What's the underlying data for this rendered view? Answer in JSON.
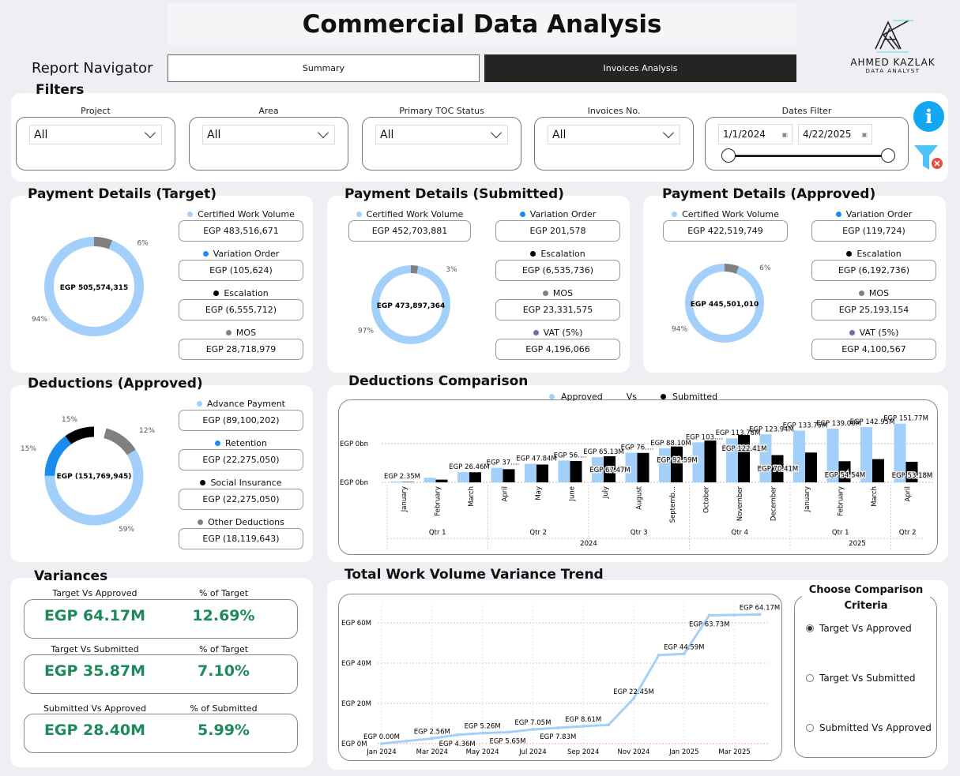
{
  "header": {
    "title": "Commercial Data Analysis",
    "nav_label": "Report Navigator",
    "nav_buttons": [
      "Summary",
      "Invoices Analysis"
    ],
    "logo_name": "AHMED KAZLAK",
    "logo_sub": "DATA ANALYST"
  },
  "filters": {
    "title": "Filters",
    "items": [
      {
        "label": "Project",
        "value": "All"
      },
      {
        "label": "Area",
        "value": "All"
      },
      {
        "label": "Primary TOC Status",
        "value": "All"
      },
      {
        "label": "Invoices No.",
        "value": "All"
      }
    ],
    "dates": {
      "label": "Dates Filter",
      "start": "1/1/2024",
      "end": "4/22/2025"
    },
    "icons": [
      "info-icon",
      "clear-filter-icon"
    ]
  },
  "colors": {
    "light_blue": "#a3d0fb",
    "blue": "#1a8cf0",
    "black": "#000000",
    "gray": "#808080",
    "green": "#1e8a5a",
    "accent": "#12a7f0"
  },
  "payment_target": {
    "title": "Payment Details (Target)",
    "total": "EGP 505,574,315",
    "pct_main": "94%",
    "pct_other": "6%",
    "share_main": 94,
    "cards": [
      {
        "label": "Certified Work Volume",
        "value": "EGP 483,516,671",
        "color": "#a3d0fb"
      },
      {
        "label": "Variation Order",
        "value": "EGP (105,624)",
        "color": "#1a8cf0"
      },
      {
        "label": "Escalation",
        "value": "EGP (6,555,712)",
        "color": "#000000"
      },
      {
        "label": "MOS",
        "value": "EGP 28,718,979",
        "color": "#808080"
      }
    ]
  },
  "payment_submitted": {
    "title": "Payment Details (Submitted)",
    "total": "EGP 473,897,364",
    "pct_main": "97%",
    "pct_other": "3%",
    "share_main": 97,
    "cards": [
      {
        "label": "Certified Work Volume",
        "value": "EGP 452,703,881",
        "color": "#a3d0fb"
      },
      {
        "label": "Variation Order",
        "value": "EGP 201,578",
        "color": "#1a8cf0"
      },
      {
        "label": "Escalation",
        "value": "EGP (6,535,736)",
        "color": "#000000"
      },
      {
        "label": "MOS",
        "value": "EGP 23,331,575",
        "color": "#808080"
      },
      {
        "label": "VAT (5%)",
        "value": "EGP 4,196,066",
        "color": "#6b6fa8"
      }
    ]
  },
  "payment_approved": {
    "title": "Payment Details (Approved)",
    "total": "EGP 445,501,010",
    "pct_main": "94%",
    "pct_other": "6%",
    "share_main": 94,
    "cards": [
      {
        "label": "Certified Work Volume",
        "value": "EGP 422,519,749",
        "color": "#a3d0fb"
      },
      {
        "label": "Variation Order",
        "value": "EGP (119,724)",
        "color": "#1a8cf0"
      },
      {
        "label": "Escalation",
        "value": "EGP (6,192,736)",
        "color": "#000000"
      },
      {
        "label": "MOS",
        "value": "EGP 25,193,154",
        "color": "#808080"
      },
      {
        "label": "VAT (5%)",
        "value": "EGP 4,100,567",
        "color": "#6b6fa8"
      }
    ]
  },
  "deductions": {
    "title": "Deductions (Approved)",
    "total": "EGP (151,769,945)",
    "pcts": [
      "59%",
      "15%",
      "15%",
      "12%"
    ],
    "cards": [
      {
        "label": "Advance Payment",
        "value": "EGP (89,100,202)",
        "color": "#a3d0fb"
      },
      {
        "label": "Retention",
        "value": "EGP (22,275,050)",
        "color": "#1a8cf0"
      },
      {
        "label": "Social Insurance",
        "value": "EGP (22,275,050)",
        "color": "#000000"
      },
      {
        "label": "Other Deductions",
        "value": "EGP (18,119,643)",
        "color": "#808080"
      }
    ]
  },
  "variances": {
    "title": "Variances",
    "rows": [
      {
        "label": "Target Vs Approved",
        "value": "EGP 64.17M",
        "pct_label": "% of Target",
        "pct": "12.69%"
      },
      {
        "label": "Target Vs Submitted",
        "value": "EGP 35.87M",
        "pct_label": "% of Target",
        "pct": "7.10%"
      },
      {
        "label": "Submitted Vs Approved",
        "value": "EGP 28.40M",
        "pct_label": "% of Submitted",
        "pct": "5.99%"
      }
    ]
  },
  "criteria": {
    "title": "Choose Comparison Criteria",
    "options": [
      "Target Vs Approved",
      "Target Vs Submitted",
      "Submitted Vs Approved"
    ],
    "selected": 0
  },
  "chart_data": [
    {
      "type": "bar",
      "title": "Deductions Comparison",
      "legend": [
        "Approved",
        "Vs",
        "Submitted"
      ],
      "legend_placement": "top",
      "categories": [
        "January",
        "February",
        "March",
        "April",
        "May",
        "June",
        "July",
        "August",
        "Septemb...",
        "October",
        "November",
        "December",
        "January",
        "February",
        "March",
        "April"
      ],
      "quarters": [
        {
          "label": "Qtr 1",
          "n": 3
        },
        {
          "label": "Qtr 2",
          "n": 3
        },
        {
          "label": "Qtr 3",
          "n": 3
        },
        {
          "label": "Qtr 4",
          "n": 3
        },
        {
          "label": "Qtr 1",
          "n": 3
        },
        {
          "label": "Qtr 2",
          "n": 1
        }
      ],
      "years": [
        {
          "label": "2024",
          "n": 12
        },
        {
          "label": "2025",
          "n": 4
        }
      ],
      "y_ticks": [
        "EGP 0bn",
        "EGP 0bn"
      ],
      "ylim_millions": [
        0,
        160
      ],
      "series": [
        {
          "name": "Approved",
          "color": "#a3d0fb",
          "values": [
            2.35,
            12,
            26.46,
            37.5,
            47.84,
            56.5,
            65.13,
            76.5,
            88.1,
            103.5,
            113.78,
            123.94,
            133.75,
            139.06,
            142.95,
            151.77
          ]
        },
        {
          "name": "Submitted",
          "color": "#000000",
          "values": [
            1,
            7,
            26,
            34,
            46,
            55,
            67.47,
            76,
            92.59,
            108,
            122.41,
            70.41,
            77,
            54.54,
            60,
            53.18
          ]
        }
      ],
      "data_labels": [
        {
          "i": 0,
          "s": 0,
          "text": "EGP 2.35M"
        },
        {
          "i": 2,
          "s": 0,
          "text": "EGP 26.46M"
        },
        {
          "i": 3,
          "s": 0,
          "text": "EGP 37.…"
        },
        {
          "i": 4,
          "s": 0,
          "text": "EGP 47.84M"
        },
        {
          "i": 5,
          "s": 0,
          "text": "EGP 56.…"
        },
        {
          "i": 6,
          "s": 0,
          "text": "EGP 65.13M"
        },
        {
          "i": 6,
          "s": 1,
          "text": "EGP 67.47M"
        },
        {
          "i": 7,
          "s": 0,
          "text": "EGP 76.…"
        },
        {
          "i": 8,
          "s": 0,
          "text": "EGP 88.10M"
        },
        {
          "i": 8,
          "s": 1,
          "text": "EGP 92.59M"
        },
        {
          "i": 9,
          "s": 0,
          "text": "EGP 103.…"
        },
        {
          "i": 10,
          "s": 0,
          "text": "EGP 113.78M"
        },
        {
          "i": 10,
          "s": 1,
          "text": "EGP 122.41M"
        },
        {
          "i": 11,
          "s": 0,
          "text": "EGP 123.94M"
        },
        {
          "i": 11,
          "s": 1,
          "text": "EGP 70.41M"
        },
        {
          "i": 12,
          "s": 0,
          "text": "EGP 133.75M"
        },
        {
          "i": 13,
          "s": 0,
          "text": "EGP 139.06M"
        },
        {
          "i": 13,
          "s": 1,
          "text": "EGP 54.54M"
        },
        {
          "i": 14,
          "s": 0,
          "text": "EGP 142.95M"
        },
        {
          "i": 15,
          "s": 0,
          "text": "EGP 151.77M"
        },
        {
          "i": 15,
          "s": 1,
          "text": "EGP 53.18M"
        }
      ]
    },
    {
      "type": "line",
      "title": "Total Work Volume Variance Trend",
      "color": "#a3d0fb",
      "x": [
        "Jan 2024",
        "Feb 2024",
        "Mar 2024",
        "Apr 2024",
        "May 2024",
        "Jun 2024",
        "Jul 2024",
        "Aug 2024",
        "Sep 2024",
        "Oct 2024",
        "Nov 2024",
        "Dec 2024",
        "Jan 2025",
        "Feb 2025",
        "Mar 2025",
        "Apr 2025"
      ],
      "y_millions": [
        0.0,
        1.3,
        2.56,
        4.36,
        5.26,
        5.65,
        7.05,
        7.83,
        8.61,
        9.3,
        22.45,
        44.0,
        44.59,
        63.73,
        63.9,
        64.17
      ],
      "labels": [
        "EGP 0.00M",
        "",
        "EGP 2.56M",
        "EGP 4.36M",
        "EGP 5.26M",
        "EGP 5.65M",
        "EGP 7.05M",
        "EGP 7.83M",
        "EGP 8.61M",
        "",
        "EGP 22.45M",
        "",
        "EGP 44.59M",
        "EGP 63.73M",
        "",
        "EGP 64.17M"
      ],
      "x_ticks": [
        "Jan 2024",
        "Mar 2024",
        "May 2024",
        "Jul 2024",
        "Sep 2024",
        "Nov 2024",
        "Jan 2025",
        "Mar 2025"
      ],
      "y_ticks": [
        "EGP 0M",
        "EGP 20M",
        "EGP 40M",
        "EGP 60M"
      ],
      "ylim_millions": [
        0,
        70
      ],
      "grid": true
    }
  ]
}
